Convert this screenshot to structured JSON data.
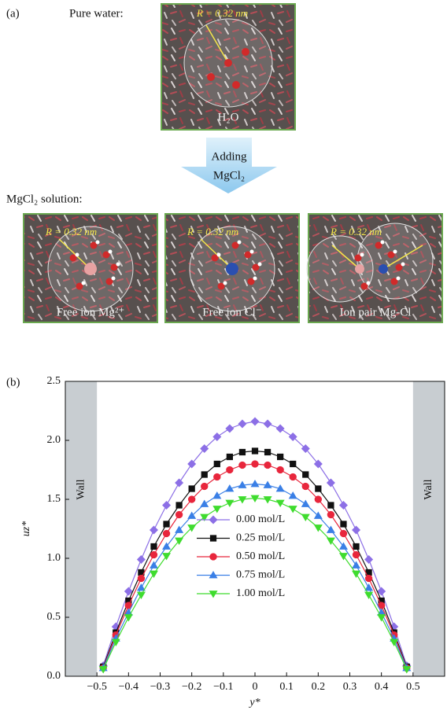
{
  "panel_a": {
    "label": "(a)",
    "pure_water": "Pure water:",
    "top_image": {
      "radius": "R = 0.32 nm",
      "caption": "H₂O"
    },
    "arrow": [
      "Adding",
      "MgCl₂"
    ],
    "solution": "MgCl₂ solution:",
    "images": [
      {
        "radius": "R = 0.32 nm",
        "caption": "Free ion Mg²⁺"
      },
      {
        "radius": "R = 0.32 nm",
        "caption": "Free ion Cl⁻"
      },
      {
        "radius": "R = 0.32 nm",
        "caption": "Ion pair Mg-Cl"
      }
    ]
  },
  "chart_data": {
    "type": "scatter",
    "panel_label": "(b)",
    "x_label": "y*",
    "y_label": "uz*",
    "xlim": [
      -0.6,
      0.6
    ],
    "ylim": [
      0,
      2.5
    ],
    "xticks": [
      {
        "value": -0.5,
        "label": "−0.5"
      },
      {
        "value": -0.4,
        "label": "−0.4"
      },
      {
        "value": -0.3,
        "label": "−0.3"
      },
      {
        "value": -0.2,
        "label": "−0.2"
      },
      {
        "value": -0.1,
        "label": "−0.1"
      },
      0,
      0.1,
      0.2,
      0.3,
      0.4,
      0.5
    ],
    "yticks": [
      {
        "value": 0,
        "label": "0.0"
      },
      0.5,
      {
        "value": 1,
        "label": "1.0"
      },
      1.5,
      {
        "value": 2,
        "label": "2.0"
      },
      2.5
    ],
    "walls": [
      {
        "label": "Wall",
        "range": [
          -0.6,
          -0.5
        ],
        "color": "#c8cdd1"
      },
      {
        "label": "Wall",
        "range": [
          0.5,
          0.6
        ],
        "color": "#c8cdd1"
      }
    ],
    "x": [
      -0.48,
      -0.44,
      -0.4,
      -0.36,
      -0.32,
      -0.28,
      -0.24,
      -0.2,
      -0.16,
      -0.12,
      -0.08,
      -0.04,
      0,
      0.04,
      0.08,
      0.12,
      0.16,
      0.2,
      0.24,
      0.28,
      0.32,
      0.36,
      0.4,
      0.44,
      0.48
    ],
    "series": [
      {
        "name": "0.00 mol/L",
        "color": "#8c6fe6",
        "marker": "diamond",
        "values": [
          0.09,
          0.42,
          0.72,
          0.99,
          1.24,
          1.45,
          1.64,
          1.8,
          1.93,
          2.03,
          2.1,
          2.14,
          2.16,
          2.14,
          2.1,
          2.03,
          1.93,
          1.8,
          1.64,
          1.45,
          1.24,
          0.99,
          0.72,
          0.42,
          0.09
        ]
      },
      {
        "name": "0.25 mol/L",
        "color": "#111111",
        "marker": "square",
        "values": [
          0.08,
          0.37,
          0.64,
          0.88,
          1.1,
          1.29,
          1.45,
          1.59,
          1.71,
          1.8,
          1.86,
          1.9,
          1.91,
          1.9,
          1.86,
          1.8,
          1.71,
          1.59,
          1.45,
          1.29,
          1.1,
          0.88,
          0.64,
          0.37,
          0.08
        ]
      },
      {
        "name": "0.50 mol/L",
        "color": "#e8263c",
        "marker": "circle",
        "values": [
          0.07,
          0.35,
          0.6,
          0.83,
          1.03,
          1.21,
          1.37,
          1.5,
          1.61,
          1.69,
          1.75,
          1.79,
          1.8,
          1.79,
          1.75,
          1.69,
          1.61,
          1.5,
          1.37,
          1.21,
          1.03,
          0.83,
          0.6,
          0.35,
          0.07
        ]
      },
      {
        "name": "0.75 mol/L",
        "color": "#3a7fe6",
        "marker": "triangle-up",
        "values": [
          0.07,
          0.32,
          0.54,
          0.75,
          0.94,
          1.1,
          1.24,
          1.36,
          1.46,
          1.53,
          1.59,
          1.62,
          1.63,
          1.62,
          1.59,
          1.53,
          1.46,
          1.36,
          1.24,
          1.1,
          0.94,
          0.75,
          0.54,
          0.32,
          0.07
        ]
      },
      {
        "name": "1.00 mol/L",
        "color": "#3fdc2e",
        "marker": "triangle-down",
        "values": [
          0.06,
          0.29,
          0.5,
          0.69,
          0.87,
          1.02,
          1.15,
          1.26,
          1.35,
          1.42,
          1.47,
          1.5,
          1.51,
          1.5,
          1.47,
          1.42,
          1.35,
          1.26,
          1.15,
          1.02,
          0.87,
          0.69,
          0.5,
          0.29,
          0.06
        ]
      }
    ]
  }
}
